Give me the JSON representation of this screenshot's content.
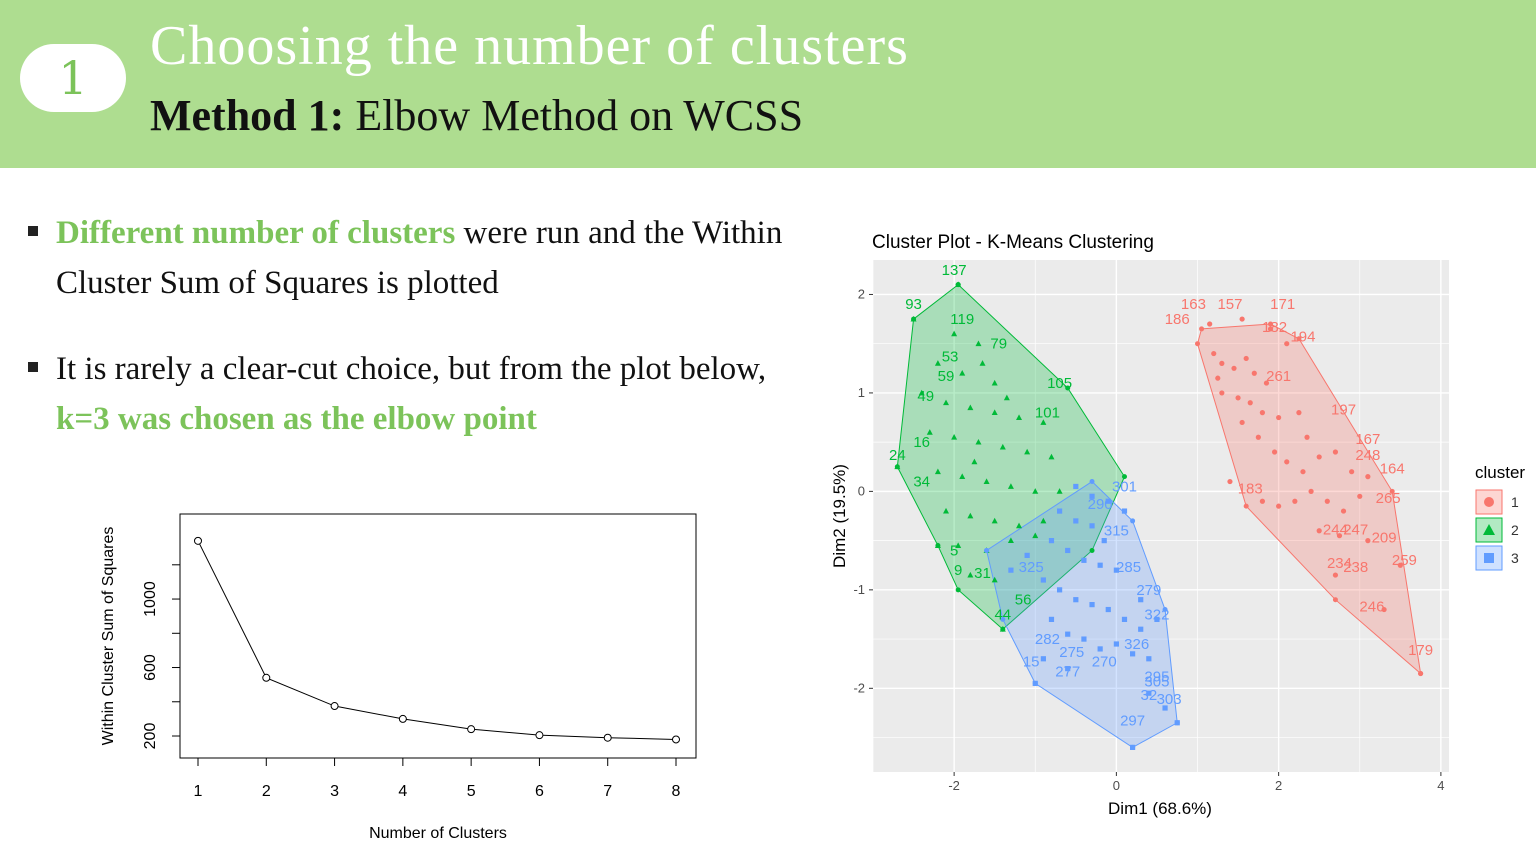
{
  "header": {
    "badge": "1",
    "title": "Choosing the number of clusters",
    "subtitle_bold": "Method 1:",
    "subtitle_rest": " Elbow Method on WCSS"
  },
  "bullets": [
    {
      "hl": "Different number of clusters",
      "rest": " were run and the Within Cluster Sum of Squares is plotted"
    },
    {
      "pre": "It is rarely a clear-cut choice, but from the plot below, ",
      "hl": "k=3 was chosen as the elbow point"
    }
  ],
  "chart_data": [
    {
      "type": "line",
      "xlabel": "Number of Clusters",
      "ylabel": "Within Cluster Sum of Squares",
      "x": [
        1,
        2,
        3,
        4,
        5,
        6,
        7,
        8
      ],
      "values": [
        1340,
        540,
        375,
        300,
        240,
        205,
        190,
        180
      ],
      "xlim": [
        1,
        8
      ],
      "ylim": [
        130,
        1450
      ],
      "xticks": [
        "1",
        "2",
        "3",
        "4",
        "5",
        "6",
        "7",
        "8"
      ],
      "yticks": [
        200,
        600,
        1000
      ]
    },
    {
      "type": "scatter",
      "title": "Cluster Plot - K-Means Clustering",
      "xlabel": "Dim1 (68.6%)",
      "ylabel": "Dim2 (19.5%)",
      "xlim": [
        -3.0,
        4.1
      ],
      "ylim": [
        -2.85,
        2.35
      ],
      "xticks": [
        "-2",
        "0",
        "2",
        "4"
      ],
      "yticks": [
        "-2",
        "-1",
        "0",
        "1",
        "2"
      ],
      "legend_title": "cluster",
      "legend_position": "right",
      "series": [
        {
          "name": "1",
          "color": "#f8766d",
          "hull": [
            [
              1.05,
              1.65
            ],
            [
              1.9,
              1.7
            ],
            [
              2.25,
              1.55
            ],
            [
              3.4,
              0.0
            ],
            [
              3.75,
              -1.85
            ],
            [
              2.7,
              -1.1
            ],
            [
              1.6,
              -0.15
            ],
            [
              1.0,
              1.5
            ]
          ],
          "points": [
            [
              1.15,
              1.7
            ],
            [
              1.55,
              1.75
            ],
            [
              1.9,
              1.65
            ],
            [
              2.1,
              1.5
            ],
            [
              1.2,
              1.4
            ],
            [
              1.3,
              1.3
            ],
            [
              1.45,
              1.25
            ],
            [
              1.6,
              1.35
            ],
            [
              1.7,
              1.2
            ],
            [
              1.85,
              1.1
            ],
            [
              1.3,
              1.0
            ],
            [
              1.5,
              0.95
            ],
            [
              1.65,
              0.9
            ],
            [
              1.8,
              0.8
            ],
            [
              2.0,
              0.75
            ],
            [
              2.25,
              0.8
            ],
            [
              1.55,
              0.7
            ],
            [
              1.75,
              0.55
            ],
            [
              1.95,
              0.4
            ],
            [
              2.1,
              0.3
            ],
            [
              2.3,
              0.2
            ],
            [
              2.5,
              0.35
            ],
            [
              2.7,
              0.4
            ],
            [
              2.9,
              0.2
            ],
            [
              3.1,
              0.15
            ],
            [
              2.4,
              0.0
            ],
            [
              2.6,
              -0.1
            ],
            [
              2.8,
              -0.2
            ],
            [
              3.0,
              -0.05
            ],
            [
              1.8,
              -0.1
            ],
            [
              2.0,
              -0.15
            ],
            [
              2.2,
              -0.1
            ],
            [
              2.5,
              -0.4
            ],
            [
              2.75,
              -0.45
            ],
            [
              3.1,
              -0.5
            ],
            [
              3.5,
              -0.75
            ],
            [
              2.7,
              -0.85
            ],
            [
              3.3,
              -1.2
            ],
            [
              3.75,
              -1.85
            ],
            [
              1.4,
              0.1
            ],
            [
              1.25,
              1.15
            ],
            [
              2.35,
              0.55
            ]
          ],
          "labels": [
            [
              "163",
              0.95,
              1.85
            ],
            [
              "157",
              1.4,
              1.85
            ],
            [
              "171",
              2.05,
              1.85
            ],
            [
              "186",
              0.75,
              1.7
            ],
            [
              "182",
              1.95,
              1.62
            ],
            [
              "194",
              2.3,
              1.52
            ],
            [
              "197",
              2.8,
              0.78
            ],
            [
              "167",
              3.1,
              0.48
            ],
            [
              "164",
              3.4,
              0.18
            ],
            [
              "209",
              3.3,
              -0.52
            ],
            [
              "259",
              3.55,
              -0.75
            ],
            [
              "246",
              3.15,
              -1.22
            ],
            [
              "179",
              3.75,
              -1.66
            ],
            [
              "183",
              1.65,
              -0.02
            ],
            [
              "238",
              2.95,
              -0.82
            ],
            [
              "234",
              2.75,
              -0.78
            ],
            [
              "244",
              2.7,
              -0.44
            ],
            [
              "247",
              2.95,
              -0.44
            ],
            [
              "248",
              3.1,
              0.32
            ],
            [
              "265",
              3.35,
              -0.12
            ],
            [
              "261",
              2.0,
              1.12
            ]
          ]
        },
        {
          "name": "2",
          "color": "#00ba38",
          "hull": [
            [
              -1.95,
              2.1
            ],
            [
              -2.5,
              1.75
            ],
            [
              -2.7,
              0.25
            ],
            [
              -2.2,
              -0.55
            ],
            [
              -1.95,
              -1.0
            ],
            [
              -1.4,
              -1.4
            ],
            [
              -0.3,
              -0.6
            ],
            [
              0.1,
              0.15
            ],
            [
              -0.6,
              1.05
            ],
            [
              -1.95,
              2.1
            ]
          ],
          "points": [
            [
              -1.95,
              2.1
            ],
            [
              -2.5,
              1.75
            ],
            [
              -2.7,
              0.25
            ],
            [
              -2.0,
              1.6
            ],
            [
              -1.7,
              1.5
            ],
            [
              -2.2,
              1.3
            ],
            [
              -1.9,
              1.2
            ],
            [
              -1.5,
              1.1
            ],
            [
              -2.4,
              1.0
            ],
            [
              -2.1,
              0.9
            ],
            [
              -1.8,
              0.85
            ],
            [
              -1.5,
              0.8
            ],
            [
              -1.2,
              0.75
            ],
            [
              -0.9,
              0.7
            ],
            [
              -2.3,
              0.6
            ],
            [
              -2.0,
              0.55
            ],
            [
              -1.7,
              0.5
            ],
            [
              -1.4,
              0.45
            ],
            [
              -1.1,
              0.4
            ],
            [
              -0.8,
              0.35
            ],
            [
              -2.2,
              0.2
            ],
            [
              -1.9,
              0.15
            ],
            [
              -1.6,
              0.1
            ],
            [
              -1.3,
              0.05
            ],
            [
              -1.0,
              0.0
            ],
            [
              -0.7,
              0.0
            ],
            [
              -2.1,
              -0.2
            ],
            [
              -1.8,
              -0.25
            ],
            [
              -1.5,
              -0.3
            ],
            [
              -1.2,
              -0.35
            ],
            [
              -0.9,
              -0.3
            ],
            [
              -1.95,
              -0.55
            ],
            [
              -1.6,
              -0.6
            ],
            [
              -1.3,
              -0.5
            ],
            [
              -1.0,
              -0.45
            ],
            [
              -1.8,
              -0.85
            ],
            [
              -1.5,
              -0.9
            ],
            [
              -1.4,
              -1.4
            ],
            [
              -2.2,
              -0.55
            ],
            [
              -1.65,
              1.3
            ],
            [
              -1.35,
              0.95
            ],
            [
              -1.75,
              0.3
            ]
          ],
          "labels": [
            [
              "137",
              -2.0,
              2.2
            ],
            [
              "93",
              -2.5,
              1.85
            ],
            [
              "119",
              -1.9,
              1.7
            ],
            [
              "79",
              -1.45,
              1.45
            ],
            [
              "105",
              -0.7,
              1.05
            ],
            [
              "101",
              -0.85,
              0.75
            ],
            [
              "49",
              -2.35,
              0.92
            ],
            [
              "24",
              -2.7,
              0.32
            ],
            [
              "34",
              -2.4,
              0.05
            ],
            [
              "16",
              -2.4,
              0.45
            ],
            [
              "9",
              -1.95,
              -0.85
            ],
            [
              "44",
              -1.4,
              -1.3
            ],
            [
              "56",
              -1.15,
              -1.15
            ],
            [
              "5",
              -2.0,
              -0.65
            ],
            [
              "31",
              -1.65,
              -0.88
            ],
            [
              "53",
              -2.05,
              1.32
            ],
            [
              "59",
              -2.1,
              1.12
            ]
          ]
        },
        {
          "name": "3",
          "color": "#619cff",
          "hull": [
            [
              -1.6,
              -0.6
            ],
            [
              -0.3,
              0.1
            ],
            [
              0.2,
              -0.3
            ],
            [
              0.6,
              -1.2
            ],
            [
              0.75,
              -2.35
            ],
            [
              0.2,
              -2.6
            ],
            [
              -1.0,
              -1.95
            ],
            [
              -1.4,
              -1.3
            ],
            [
              -1.6,
              -0.6
            ]
          ],
          "points": [
            [
              -0.5,
              0.05
            ],
            [
              -0.3,
              -0.05
            ],
            [
              -0.1,
              -0.1
            ],
            [
              0.1,
              -0.2
            ],
            [
              -0.7,
              -0.2
            ],
            [
              -0.5,
              -0.3
            ],
            [
              -0.3,
              -0.35
            ],
            [
              -0.8,
              -0.5
            ],
            [
              -0.6,
              -0.6
            ],
            [
              -0.4,
              -0.7
            ],
            [
              -0.2,
              -0.75
            ],
            [
              0.0,
              -0.8
            ],
            [
              -0.9,
              -0.9
            ],
            [
              -0.7,
              -1.0
            ],
            [
              -0.5,
              -1.1
            ],
            [
              -0.3,
              -1.15
            ],
            [
              -0.1,
              -1.2
            ],
            [
              0.1,
              -1.3
            ],
            [
              0.3,
              -1.4
            ],
            [
              -0.8,
              -1.3
            ],
            [
              -0.6,
              -1.45
            ],
            [
              -0.4,
              -1.5
            ],
            [
              -0.2,
              -1.6
            ],
            [
              0.0,
              -1.55
            ],
            [
              0.2,
              -1.65
            ],
            [
              0.4,
              -1.7
            ],
            [
              -0.9,
              -1.7
            ],
            [
              -0.6,
              -1.8
            ],
            [
              0.4,
              -2.05
            ],
            [
              0.6,
              -2.2
            ],
            [
              0.75,
              -2.35
            ],
            [
              0.2,
              -2.6
            ],
            [
              -1.0,
              -1.95
            ],
            [
              -1.3,
              -0.8
            ],
            [
              -1.1,
              -0.65
            ],
            [
              0.3,
              -1.1
            ],
            [
              0.5,
              -1.3
            ],
            [
              -0.15,
              -0.5
            ]
          ],
          "labels": [
            [
              "325",
              -1.05,
              -0.82
            ],
            [
              "285",
              0.15,
              -0.82
            ],
            [
              "279",
              0.4,
              -1.05
            ],
            [
              "282",
              -0.85,
              -1.55
            ],
            [
              "275",
              -0.55,
              -1.68
            ],
            [
              "270",
              -0.15,
              -1.78
            ],
            [
              "277",
              -0.6,
              -1.88
            ],
            [
              "15",
              -1.05,
              -1.78
            ],
            [
              "295",
              0.5,
              -1.93
            ],
            [
              "305",
              0.5,
              -1.98
            ],
            [
              "32",
              0.4,
              -2.12
            ],
            [
              "303",
              0.65,
              -2.16
            ],
            [
              "297",
              0.2,
              -2.38
            ],
            [
              "326",
              0.25,
              -1.6
            ],
            [
              "315",
              0.0,
              -0.45
            ],
            [
              "301",
              0.1,
              0.0
            ],
            [
              "290",
              -0.2,
              -0.18
            ],
            [
              "322",
              0.5,
              -1.3
            ]
          ]
        }
      ]
    }
  ]
}
